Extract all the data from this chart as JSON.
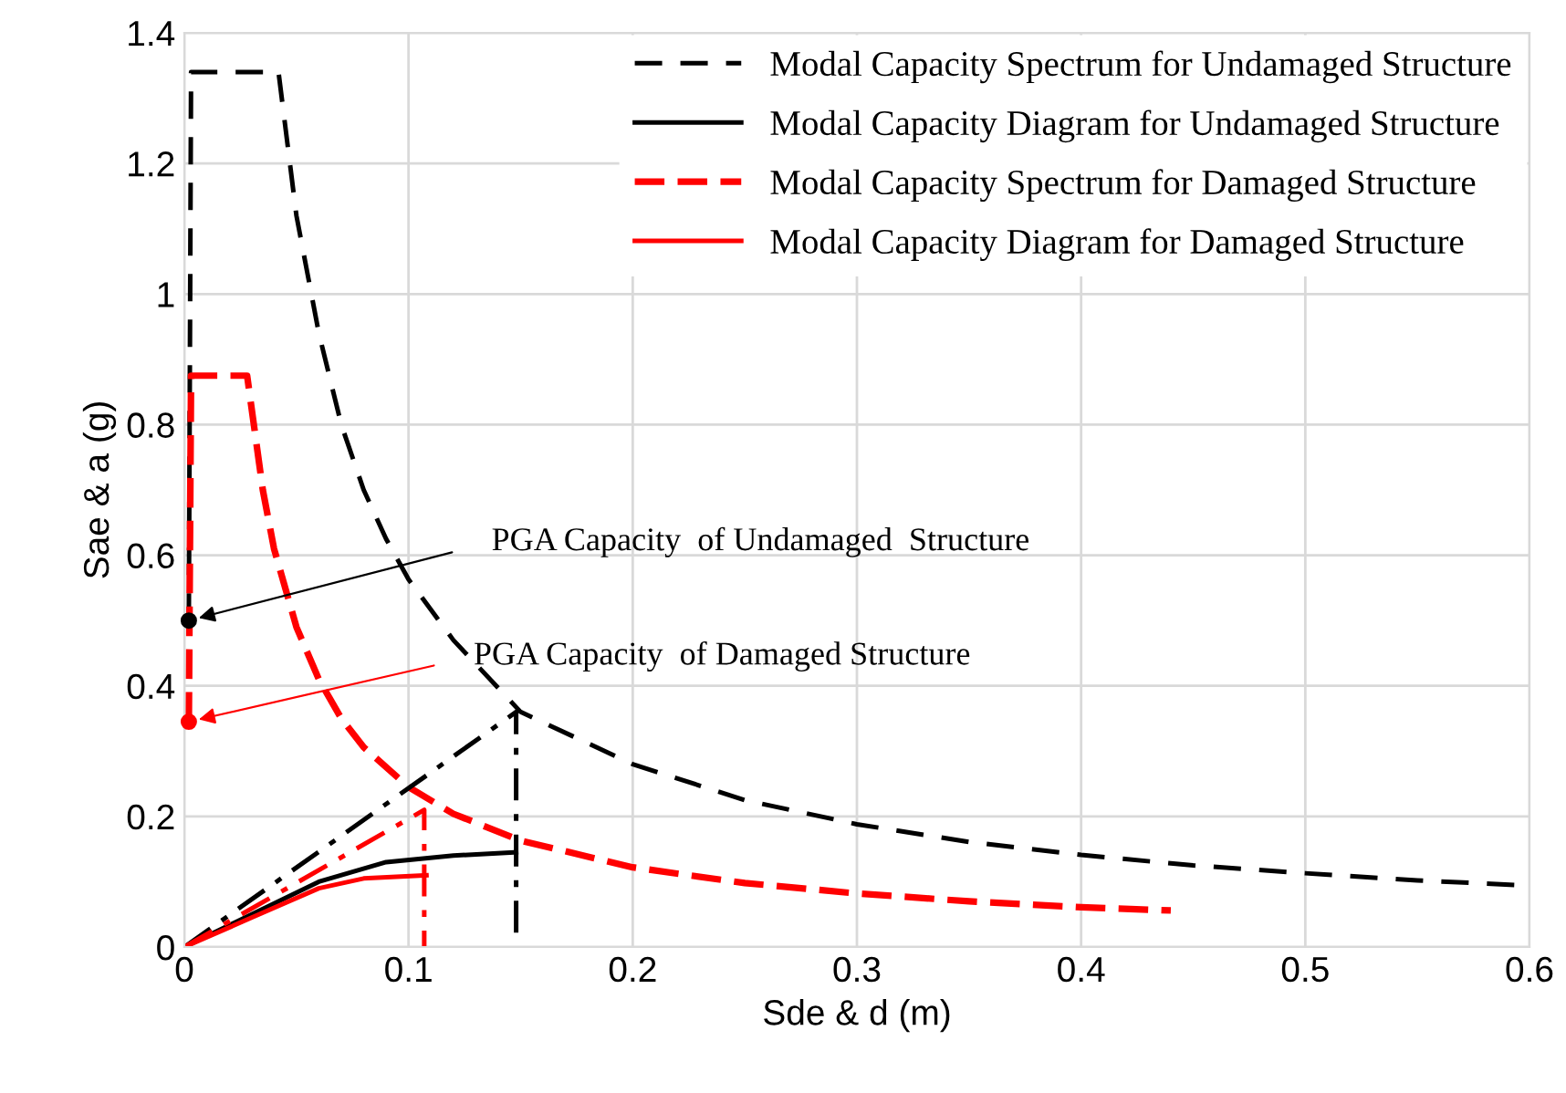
{
  "chart_data": {
    "type": "line",
    "xlabel": "Sde & d (m)",
    "ylabel": "Sae & a (g)",
    "xlim": [
      0,
      0.6
    ],
    "ylim": [
      0,
      1.4
    ],
    "xticks": [
      0,
      0.1,
      0.2,
      0.3,
      0.4,
      0.5,
      0.6
    ],
    "yticks": [
      0,
      0.2,
      0.4,
      0.6,
      0.8,
      1,
      1.2,
      1.4
    ],
    "grid": true,
    "legend": "top right",
    "series": [
      {
        "name": "Modal Capacity Spectrum for Undamaged Structure",
        "color": "#000000",
        "line_style": "dashed",
        "x": [
          0.002,
          0.003,
          0.042,
          0.05,
          0.06,
          0.07,
          0.08,
          0.09,
          0.1,
          0.12,
          0.15,
          0.2,
          0.25,
          0.3,
          0.35,
          0.4,
          0.45,
          0.5,
          0.55,
          0.6
        ],
        "values": [
          0.5,
          1.34,
          1.34,
          1.12,
          0.94,
          0.8,
          0.7,
          0.625,
          0.563,
          0.47,
          0.36,
          0.28,
          0.225,
          0.188,
          0.161,
          0.141,
          0.125,
          0.113,
          0.102,
          0.094
        ]
      },
      {
        "name": "Modal Capacity Diagram for Undamaged Structure",
        "color": "#000000",
        "line_style": "solid",
        "x": [
          0,
          0.03,
          0.06,
          0.09,
          0.12,
          0.148
        ],
        "values": [
          0,
          0.05,
          0.1,
          0.13,
          0.14,
          0.145
        ]
      },
      {
        "name": "Modal Capacity Spectrum for Damaged Structure",
        "color": "#ff0000",
        "line_style": "dashed",
        "x": [
          0.002,
          0.003,
          0.028,
          0.035,
          0.04,
          0.05,
          0.06,
          0.07,
          0.08,
          0.1,
          0.12,
          0.15,
          0.2,
          0.25,
          0.3,
          0.35,
          0.4,
          0.44
        ],
        "values": [
          0.345,
          0.875,
          0.875,
          0.7,
          0.61,
          0.49,
          0.41,
          0.35,
          0.306,
          0.245,
          0.204,
          0.163,
          0.122,
          0.098,
          0.082,
          0.07,
          0.061,
          0.056
        ]
      },
      {
        "name": "Modal Capacity Diagram for Damaged Structure",
        "color": "#ff0000",
        "line_style": "solid",
        "x": [
          0,
          0.03,
          0.06,
          0.08,
          0.108
        ],
        "values": [
          0,
          0.045,
          0.09,
          0.105,
          0.11
        ]
      },
      {
        "color": "#000000",
        "line_style": "dashdot",
        "x": [
          0,
          0.148,
          0.148
        ],
        "values": [
          0,
          0.36,
          0
        ]
      },
      {
        "color": "#ff0000",
        "line_style": "dashdot",
        "x": [
          0,
          0.107,
          0.107
        ],
        "values": [
          0,
          0.21,
          0
        ]
      },
      {
        "type": "scatter",
        "color": "#000000",
        "x": [
          0.002
        ],
        "values": [
          0.5
        ]
      },
      {
        "type": "scatter",
        "color": "#ff0000",
        "x": [
          0.002
        ],
        "values": [
          0.345
        ]
      }
    ],
    "annotations": [
      {
        "text": "PGA Capacity  of Undamaged  Structure",
        "x": 0.002,
        "y": 0.5
      },
      {
        "text": "PGA Capacity  of Damaged Structure",
        "x": 0.002,
        "y": 0.345
      }
    ]
  }
}
